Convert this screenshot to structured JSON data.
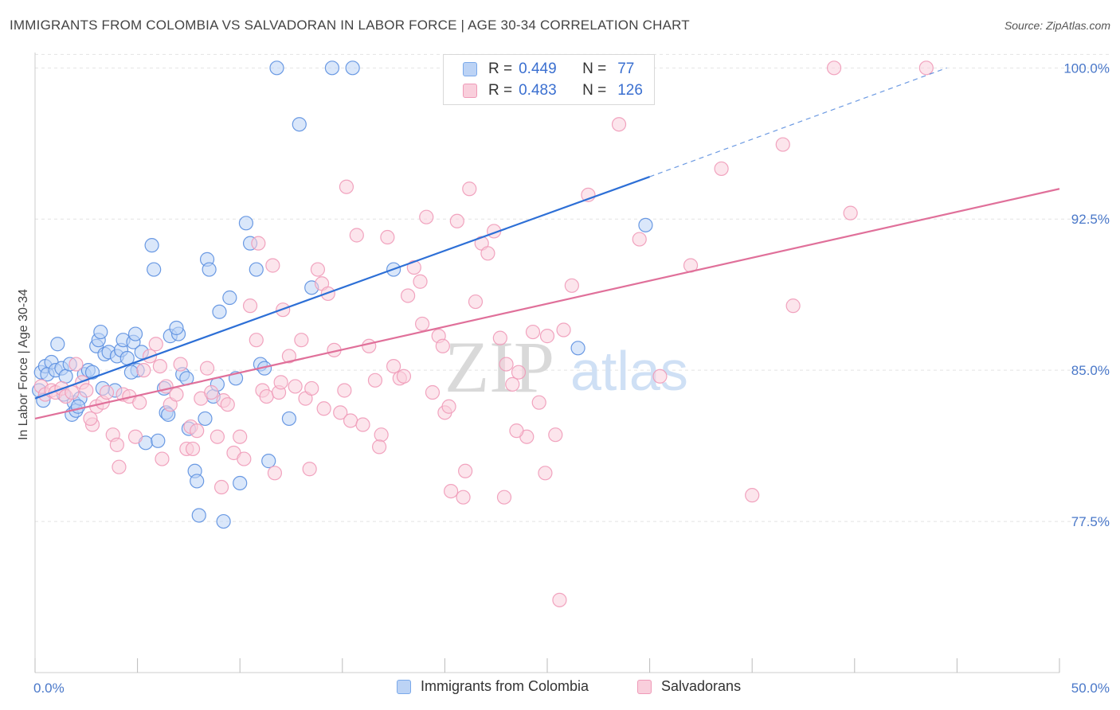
{
  "header": {
    "title": "IMMIGRANTS FROM COLOMBIA VS SALVADORAN IN LABOR FORCE | AGE 30-34 CORRELATION CHART",
    "source": "Source: ZipAtlas.com"
  },
  "watermark": {
    "zip": "ZIP",
    "atlas": "atlas"
  },
  "legend": {
    "r_label": "R =",
    "n_label": "N =",
    "rows": [
      {
        "r": "0.449",
        "n": "77",
        "color": "#7aa9ea",
        "fill": "#bcd3f5"
      },
      {
        "r": "0.483",
        "n": "126",
        "color": "#ef9ab8",
        "fill": "#f9cfdc"
      }
    ]
  },
  "bottom_legend": [
    {
      "label": "Immigrants from Colombia",
      "color": "#7aa9ea",
      "fill": "#bcd3f5"
    },
    {
      "label": "Salvadorans",
      "color": "#ef9ab8",
      "fill": "#f9cfdc"
    }
  ],
  "chart_data": {
    "type": "scatter",
    "title": "IMMIGRANTS FROM COLOMBIA VS SALVADORAN IN LABOR FORCE | AGE 30-34 CORRELATION CHART",
    "xlabel": "",
    "ylabel": "In Labor Force | Age 30-34",
    "xlim": [
      0,
      50
    ],
    "ylim": [
      70.0,
      101.0
    ],
    "x_tick_labels": [
      {
        "value": 0,
        "label": "0.0%"
      },
      {
        "value": 50,
        "label": "50.0%"
      }
    ],
    "y_ticks": [
      {
        "value": 100.0,
        "label": "100.0%"
      },
      {
        "value": 92.5,
        "label": "92.5%"
      },
      {
        "value": 85.0,
        "label": "85.0%"
      },
      {
        "value": 77.5,
        "label": "77.5%"
      }
    ],
    "grid": true,
    "series": [
      {
        "name": "Immigrants from Colombia",
        "color": "#5b8fe0",
        "fill": "#bcd3f5",
        "trend": {
          "x0": 0,
          "y0": 83.6,
          "x1": 30,
          "y1": 94.6,
          "dash_to_x": 44.5,
          "dash_to_y": 100.0,
          "color": "#2d6fd6"
        },
        "points": [
          [
            0.2,
            84.0
          ],
          [
            0.3,
            84.9
          ],
          [
            0.5,
            85.2
          ],
          [
            0.6,
            84.8
          ],
          [
            0.8,
            85.4
          ],
          [
            1.0,
            85.0
          ],
          [
            1.1,
            86.3
          ],
          [
            1.3,
            85.1
          ],
          [
            1.5,
            84.7
          ],
          [
            1.7,
            85.3
          ],
          [
            1.8,
            82.8
          ],
          [
            1.9,
            83.4
          ],
          [
            2.0,
            83.0
          ],
          [
            2.2,
            83.6
          ],
          [
            2.4,
            84.8
          ],
          [
            2.6,
            85.0
          ],
          [
            2.8,
            84.9
          ],
          [
            3.0,
            86.2
          ],
          [
            3.1,
            86.5
          ],
          [
            3.2,
            86.9
          ],
          [
            3.4,
            85.8
          ],
          [
            3.6,
            85.9
          ],
          [
            3.9,
            84.0
          ],
          [
            4.0,
            85.7
          ],
          [
            4.2,
            86.0
          ],
          [
            4.3,
            86.5
          ],
          [
            4.5,
            85.6
          ],
          [
            4.8,
            86.4
          ],
          [
            4.9,
            86.8
          ],
          [
            5.0,
            85.0
          ],
          [
            5.2,
            85.9
          ],
          [
            5.4,
            81.4
          ],
          [
            5.7,
            91.2
          ],
          [
            5.8,
            90.0
          ],
          [
            6.0,
            81.5
          ],
          [
            6.3,
            84.1
          ],
          [
            6.4,
            82.9
          ],
          [
            6.5,
            82.8
          ],
          [
            6.6,
            86.7
          ],
          [
            7.0,
            86.8
          ],
          [
            7.2,
            84.8
          ],
          [
            7.4,
            84.6
          ],
          [
            7.5,
            82.1
          ],
          [
            7.8,
            80.0
          ],
          [
            7.9,
            79.5
          ],
          [
            8.0,
            77.8
          ],
          [
            8.3,
            82.6
          ],
          [
            8.4,
            90.5
          ],
          [
            8.5,
            90.0
          ],
          [
            8.7,
            83.7
          ],
          [
            9.0,
            87.9
          ],
          [
            9.2,
            77.5
          ],
          [
            9.5,
            88.6
          ],
          [
            9.8,
            84.6
          ],
          [
            10.0,
            79.4
          ],
          [
            10.3,
            92.3
          ],
          [
            10.5,
            91.3
          ],
          [
            10.8,
            90.0
          ],
          [
            11.0,
            85.3
          ],
          [
            11.2,
            85.1
          ],
          [
            11.4,
            80.5
          ],
          [
            11.8,
            100.0
          ],
          [
            12.4,
            82.6
          ],
          [
            12.9,
            97.2
          ],
          [
            13.5,
            89.1
          ],
          [
            14.5,
            100.0
          ],
          [
            15.5,
            100.0
          ],
          [
            17.5,
            90.0
          ],
          [
            26.5,
            86.1
          ],
          [
            29.8,
            92.2
          ],
          [
            3.3,
            84.1
          ],
          [
            2.1,
            83.2
          ],
          [
            4.7,
            84.9
          ],
          [
            6.9,
            87.1
          ],
          [
            0.4,
            83.5
          ],
          [
            1.4,
            83.8
          ],
          [
            8.9,
            84.3
          ]
        ]
      },
      {
        "name": "Salvadorans",
        "color": "#ef9ab8",
        "fill": "#f9cfdc",
        "trend": {
          "x0": 0,
          "y0": 82.6,
          "x1": 50,
          "y1": 94.0,
          "color": "#e0709a"
        },
        "points": [
          [
            0.3,
            84.2
          ],
          [
            0.5,
            83.8
          ],
          [
            0.8,
            84.0
          ],
          [
            1.0,
            83.9
          ],
          [
            1.3,
            84.1
          ],
          [
            1.5,
            83.7
          ],
          [
            1.8,
            83.9
          ],
          [
            2.0,
            85.3
          ],
          [
            2.3,
            84.4
          ],
          [
            2.5,
            84.0
          ],
          [
            2.8,
            82.3
          ],
          [
            3.0,
            83.2
          ],
          [
            3.3,
            83.4
          ],
          [
            3.5,
            83.9
          ],
          [
            3.8,
            81.8
          ],
          [
            4.0,
            81.3
          ],
          [
            4.3,
            83.8
          ],
          [
            4.6,
            83.7
          ],
          [
            4.9,
            81.7
          ],
          [
            5.1,
            83.4
          ],
          [
            5.3,
            85.0
          ],
          [
            5.6,
            85.7
          ],
          [
            5.9,
            86.3
          ],
          [
            6.1,
            85.2
          ],
          [
            6.4,
            84.2
          ],
          [
            6.6,
            83.3
          ],
          [
            6.9,
            83.8
          ],
          [
            7.1,
            85.3
          ],
          [
            7.4,
            81.1
          ],
          [
            7.6,
            82.2
          ],
          [
            7.9,
            82.0
          ],
          [
            8.1,
            83.6
          ],
          [
            8.4,
            85.1
          ],
          [
            8.6,
            83.9
          ],
          [
            8.9,
            81.7
          ],
          [
            9.2,
            83.5
          ],
          [
            9.4,
            83.3
          ],
          [
            9.7,
            80.9
          ],
          [
            10.0,
            81.7
          ],
          [
            10.2,
            80.6
          ],
          [
            10.5,
            88.2
          ],
          [
            10.8,
            86.5
          ],
          [
            11.1,
            84.0
          ],
          [
            11.3,
            83.7
          ],
          [
            11.6,
            90.2
          ],
          [
            11.9,
            83.9
          ],
          [
            12.1,
            88.0
          ],
          [
            12.4,
            85.7
          ],
          [
            12.7,
            84.2
          ],
          [
            13.0,
            86.5
          ],
          [
            13.2,
            83.6
          ],
          [
            13.5,
            84.1
          ],
          [
            13.8,
            90.0
          ],
          [
            14.0,
            89.3
          ],
          [
            14.3,
            88.8
          ],
          [
            14.6,
            86.0
          ],
          [
            14.9,
            82.9
          ],
          [
            15.1,
            84.0
          ],
          [
            15.4,
            82.5
          ],
          [
            15.7,
            91.7
          ],
          [
            16.0,
            82.3
          ],
          [
            16.3,
            86.2
          ],
          [
            16.6,
            84.5
          ],
          [
            16.9,
            81.8
          ],
          [
            17.2,
            91.6
          ],
          [
            17.5,
            85.2
          ],
          [
            17.8,
            84.6
          ],
          [
            18.2,
            88.7
          ],
          [
            18.5,
            90.1
          ],
          [
            18.8,
            89.4
          ],
          [
            19.1,
            92.6
          ],
          [
            19.4,
            83.9
          ],
          [
            19.7,
            86.7
          ],
          [
            20.0,
            82.9
          ],
          [
            20.3,
            79.0
          ],
          [
            20.6,
            92.4
          ],
          [
            20.9,
            78.7
          ],
          [
            21.2,
            94.0
          ],
          [
            21.5,
            88.4
          ],
          [
            21.8,
            91.3
          ],
          [
            22.1,
            90.8
          ],
          [
            22.4,
            91.9
          ],
          [
            22.7,
            86.6
          ],
          [
            23.0,
            85.3
          ],
          [
            23.3,
            84.3
          ],
          [
            23.6,
            84.9
          ],
          [
            24.0,
            81.7
          ],
          [
            24.3,
            86.9
          ],
          [
            24.6,
            83.4
          ],
          [
            25.0,
            86.7
          ],
          [
            25.4,
            81.8
          ],
          [
            25.8,
            87.0
          ],
          [
            26.2,
            89.2
          ],
          [
            27.0,
            93.7
          ],
          [
            28.5,
            97.2
          ],
          [
            29.5,
            91.5
          ],
          [
            30.5,
            84.7
          ],
          [
            32.0,
            90.2
          ],
          [
            33.5,
            95.0
          ],
          [
            35.0,
            78.8
          ],
          [
            36.5,
            96.2
          ],
          [
            37.0,
            88.2
          ],
          [
            39.0,
            100.0
          ],
          [
            39.8,
            92.8
          ],
          [
            43.5,
            100.0
          ],
          [
            10.9,
            91.3
          ],
          [
            13.4,
            80.1
          ],
          [
            15.2,
            94.1
          ],
          [
            18.9,
            87.3
          ],
          [
            21.0,
            80.0
          ],
          [
            22.9,
            78.7
          ],
          [
            25.6,
            73.6
          ],
          [
            9.1,
            79.2
          ],
          [
            6.2,
            80.6
          ],
          [
            4.1,
            80.2
          ],
          [
            2.7,
            82.6
          ],
          [
            7.7,
            81.1
          ],
          [
            12.0,
            84.4
          ],
          [
            20.2,
            83.2
          ],
          [
            16.8,
            81.2
          ],
          [
            11.7,
            79.9
          ],
          [
            14.1,
            83.1
          ],
          [
            19.9,
            86.2
          ],
          [
            24.9,
            79.9
          ],
          [
            23.5,
            82.0
          ],
          [
            18.0,
            84.7
          ]
        ]
      }
    ]
  }
}
